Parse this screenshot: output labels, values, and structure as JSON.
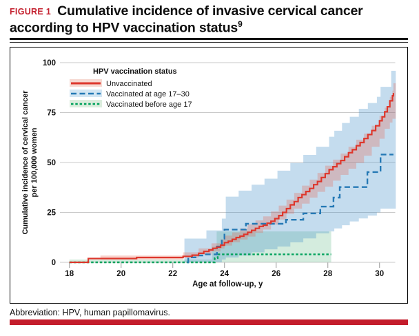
{
  "figure": {
    "label": "FIGURE 1",
    "title": "Cumulative incidence of invasive cervical cancer according to HPV vaccination status",
    "title_ref": "9",
    "footnote": "Abbreviation: HPV, human papillomavirus.",
    "label_color": "#c4212f",
    "bottom_bar_color": "#c41d2c"
  },
  "chart_data": {
    "type": "line",
    "step": true,
    "xlabel": "Age at follow-up, y",
    "ylabel_lines": [
      "Cumulative incidence of cervical cancer",
      "per 100,000 women"
    ],
    "legend_title": "HPV vaccination status",
    "xlim": [
      17.95,
      30.63
    ],
    "ylim": [
      0,
      100
    ],
    "xticks": [
      18,
      20,
      22,
      24,
      26,
      28,
      30
    ],
    "yticks": [
      0,
      25,
      50,
      75,
      100
    ],
    "grid_color": "#c9c9c9",
    "tick_color": "#a9a9a9",
    "text_color": "#111111",
    "series": [
      {
        "name": "Vaccinated before age 17",
        "color": "#00a25c",
        "dash": "3.5 2.8",
        "width": 2.4,
        "band_color": "#28a05a",
        "band_opacity": 0.2,
        "legend_bg": "#dbeddd",
        "legend_order": 2,
        "points": [
          [
            18.0,
            0
          ],
          [
            23.52,
            0
          ],
          [
            23.62,
            2.1
          ],
          [
            23.74,
            4
          ],
          [
            28.13,
            4
          ]
        ],
        "band": [
          [
            18.0,
            0,
            1.4
          ],
          [
            23.52,
            0,
            7.9
          ],
          [
            23.7,
            0,
            15.5
          ],
          [
            28.13,
            0,
            15.5
          ]
        ]
      },
      {
        "name": "Vaccinated at age 17–30",
        "color": "#2579b5",
        "dash": "8 4.5",
        "width": 2.4,
        "band_color": "#3c8cc8",
        "band_opacity": 0.3,
        "legend_bg": "#d3e6f3",
        "legend_order": 1,
        "points": [
          [
            22.56,
            0
          ],
          [
            22.6,
            2.5
          ],
          [
            22.97,
            3.4
          ],
          [
            23.18,
            4
          ],
          [
            23.71,
            7.9
          ],
          [
            23.9,
            11.9
          ],
          [
            24.0,
            16.4
          ],
          [
            24.83,
            19.3
          ],
          [
            26.38,
            21.3
          ],
          [
            27.05,
            24.5
          ],
          [
            27.71,
            27.9
          ],
          [
            28.22,
            32.4
          ],
          [
            28.46,
            37.7
          ],
          [
            29.53,
            45.2
          ],
          [
            30.04,
            54
          ],
          [
            30.54,
            54
          ]
        ],
        "band": [
          [
            22.45,
            0,
            11.9
          ],
          [
            23.3,
            0,
            16
          ],
          [
            23.9,
            0,
            21.9
          ],
          [
            24.05,
            1.4,
            32.9
          ],
          [
            24.55,
            2.4,
            35.9
          ],
          [
            25.05,
            3.4,
            38.9
          ],
          [
            25.55,
            5,
            41.9
          ],
          [
            26.05,
            6.5,
            45.9
          ],
          [
            26.55,
            7.9,
            49.8
          ],
          [
            27.05,
            10,
            53.8
          ],
          [
            27.55,
            12,
            57.9
          ],
          [
            28.05,
            14.5,
            62.9
          ],
          [
            28.25,
            15.5,
            65.9
          ],
          [
            28.55,
            17,
            69.8
          ],
          [
            28.85,
            18.6,
            72.9
          ],
          [
            29.2,
            20.5,
            76.9
          ],
          [
            29.55,
            22,
            79.8
          ],
          [
            29.9,
            23.4,
            82.9
          ],
          [
            30.04,
            25,
            87.9
          ],
          [
            30.45,
            26.9,
            95.9
          ],
          [
            30.63,
            26.9,
            95.9
          ]
        ]
      },
      {
        "name": "Unvaccinated",
        "color": "#dd372c",
        "dash": "solid",
        "width": 2.2,
        "band_color": "#e8604a",
        "band_opacity": 0.28,
        "legend_bg": "#f6d9d2",
        "legend_order": 0,
        "points": [
          [
            18.0,
            0
          ],
          [
            18.73,
            1.9
          ],
          [
            20.6,
            2.4
          ],
          [
            22.4,
            3
          ],
          [
            22.75,
            3.6
          ],
          [
            23.0,
            4.5
          ],
          [
            23.2,
            5.5
          ],
          [
            23.4,
            6.2
          ],
          [
            23.55,
            7
          ],
          [
            23.7,
            7.6
          ],
          [
            23.85,
            8.6
          ],
          [
            24.0,
            9.9
          ],
          [
            24.15,
            10.6
          ],
          [
            24.3,
            11.5
          ],
          [
            24.45,
            12.4
          ],
          [
            24.6,
            13.1
          ],
          [
            24.75,
            14
          ],
          [
            24.9,
            15
          ],
          [
            25.05,
            16
          ],
          [
            25.2,
            17
          ],
          [
            25.35,
            18
          ],
          [
            25.5,
            18.6
          ],
          [
            25.65,
            19.6
          ],
          [
            25.8,
            20.6
          ],
          [
            25.95,
            21.9
          ],
          [
            26.1,
            23.4
          ],
          [
            26.25,
            25
          ],
          [
            26.4,
            26.9
          ],
          [
            26.55,
            28.8
          ],
          [
            26.7,
            30.4
          ],
          [
            26.85,
            32.4
          ],
          [
            27.0,
            33.9
          ],
          [
            27.15,
            35.5
          ],
          [
            27.3,
            37
          ],
          [
            27.45,
            38.9
          ],
          [
            27.6,
            40.5
          ],
          [
            27.75,
            42.5
          ],
          [
            27.9,
            44.4
          ],
          [
            28.05,
            46.4
          ],
          [
            28.2,
            47.9
          ],
          [
            28.35,
            49.4
          ],
          [
            28.5,
            51
          ],
          [
            28.65,
            52.9
          ],
          [
            28.8,
            54.9
          ],
          [
            28.95,
            56.4
          ],
          [
            29.1,
            58.4
          ],
          [
            29.25,
            60
          ],
          [
            29.4,
            62
          ],
          [
            29.55,
            64
          ],
          [
            29.7,
            66
          ],
          [
            29.85,
            68.4
          ],
          [
            30.0,
            70.9
          ],
          [
            30.1,
            72.9
          ],
          [
            30.2,
            75.4
          ],
          [
            30.3,
            77.9
          ],
          [
            30.4,
            80.9
          ],
          [
            30.5,
            83.4
          ],
          [
            30.54,
            84.8
          ]
        ],
        "band": [
          [
            19.2,
            0.4,
            3.4
          ],
          [
            22.4,
            1.4,
            5
          ],
          [
            23.0,
            2.4,
            7
          ],
          [
            23.5,
            3.9,
            9.5
          ],
          [
            23.85,
            5.5,
            11.5
          ],
          [
            24.0,
            6.9,
            13.4
          ],
          [
            24.3,
            8.4,
            15
          ],
          [
            24.6,
            10,
            17
          ],
          [
            24.9,
            11.4,
            19
          ],
          [
            25.2,
            12.9,
            21
          ],
          [
            25.5,
            14.8,
            23
          ],
          [
            25.8,
            16.4,
            25.5
          ],
          [
            26.1,
            18.9,
            28.4
          ],
          [
            26.4,
            21.4,
            31.4
          ],
          [
            26.7,
            24.3,
            34.8
          ],
          [
            27.0,
            26.9,
            38.4
          ],
          [
            27.3,
            29.4,
            41.4
          ],
          [
            27.6,
            32.4,
            44.8
          ],
          [
            27.9,
            35.3,
            48.4
          ],
          [
            28.2,
            37.9,
            51.4
          ],
          [
            28.5,
            40.9,
            54.5
          ],
          [
            28.8,
            43.8,
            57.9
          ],
          [
            29.1,
            46.9,
            61.4
          ],
          [
            29.4,
            49.8,
            64.5
          ],
          [
            29.7,
            53.4,
            68.4
          ],
          [
            30.0,
            57.9,
            73.4
          ],
          [
            30.2,
            61.9,
            77.4
          ],
          [
            30.4,
            66.9,
            82.9
          ],
          [
            30.5,
            70,
            86
          ],
          [
            30.54,
            71.9,
            89.7
          ],
          [
            30.63,
            71.9,
            89.7
          ]
        ]
      }
    ]
  }
}
